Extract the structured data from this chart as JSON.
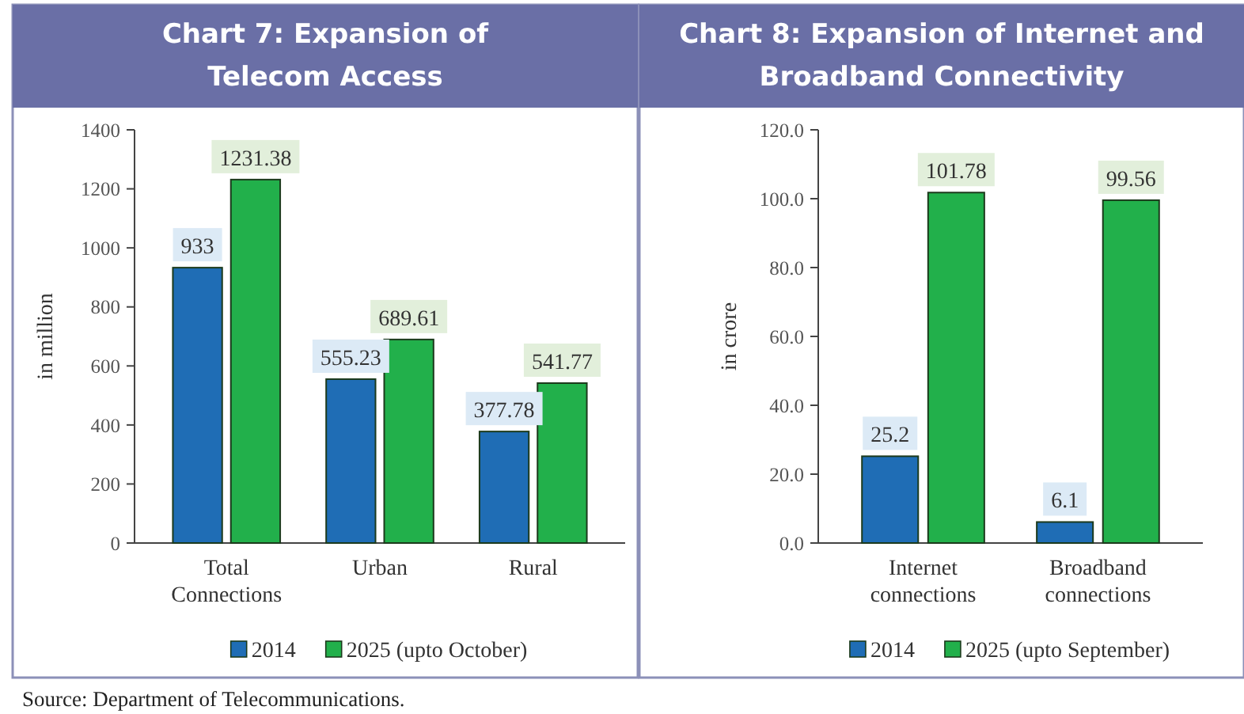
{
  "chart_data": [
    {
      "type": "bar",
      "title": "Chart 7: Expansion of Telecom Access",
      "ylabel": "in million",
      "categories": [
        "Total Connections",
        "Urban",
        "Rural"
      ],
      "series": [
        {
          "name": "2014",
          "color": "#1f6db5",
          "values": [
            933,
            555.23,
            377.78
          ]
        },
        {
          "name": "2025 (upto October)",
          "color": "#22b04b",
          "values": [
            1231.38,
            689.61,
            541.77
          ]
        }
      ],
      "ylim": [
        0,
        1400
      ],
      "yticks": [
        0,
        200,
        400,
        600,
        800,
        1000,
        1200,
        1400
      ],
      "grid": false,
      "legend": "bottom",
      "data_labels": true,
      "annotations": [
        "Source: Department of Telecommunications."
      ]
    },
    {
      "type": "bar",
      "title": "Chart 8: Expansion of Internet and Broadband Connectivity",
      "ylabel": "in crore",
      "categories": [
        "Internet connections",
        "Broadband connections"
      ],
      "series": [
        {
          "name": "2014",
          "color": "#1f6db5",
          "values": [
            25.2,
            6.1
          ]
        },
        {
          "name": "2025 (upto September)",
          "color": "#22b04b",
          "values": [
            101.78,
            99.56
          ]
        }
      ],
      "ylim": [
        0,
        120
      ],
      "yticks": [
        {
          "value": 0,
          "label": "0.0"
        },
        {
          "value": 20,
          "label": "20.0"
        },
        {
          "value": 40,
          "label": "40.0"
        },
        {
          "value": 60,
          "label": "60.0"
        },
        {
          "value": 80,
          "label": "80.0"
        },
        {
          "value": 100,
          "label": "100.0"
        },
        {
          "value": 120,
          "label": "120.0"
        }
      ],
      "grid": false,
      "legend": "bottom",
      "data_labels": true
    }
  ]
}
